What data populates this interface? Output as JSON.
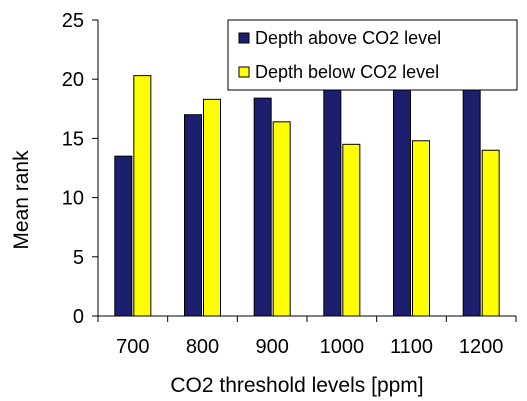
{
  "chart_data": {
    "type": "bar",
    "categories": [
      "700",
      "800",
      "900",
      "1000",
      "1100",
      "1200"
    ],
    "series": [
      {
        "name": "Depth above CO2 level",
        "values": [
          13.5,
          17.0,
          18.4,
          19.6,
          19.3,
          20.0
        ],
        "color": "#1c1f6e"
      },
      {
        "name": "Depth below CO2 level",
        "values": [
          20.3,
          18.3,
          16.4,
          14.5,
          14.8,
          14.0
        ],
        "color": "#ffff00"
      }
    ],
    "xlabel": "CO2 threshold levels [ppm]",
    "ylabel": "Mean rank",
    "ylim": [
      0,
      25
    ],
    "yticks": [
      "0",
      "5",
      "10",
      "15",
      "20",
      "25"
    ],
    "legend_position": "top-right",
    "grid": false
  }
}
